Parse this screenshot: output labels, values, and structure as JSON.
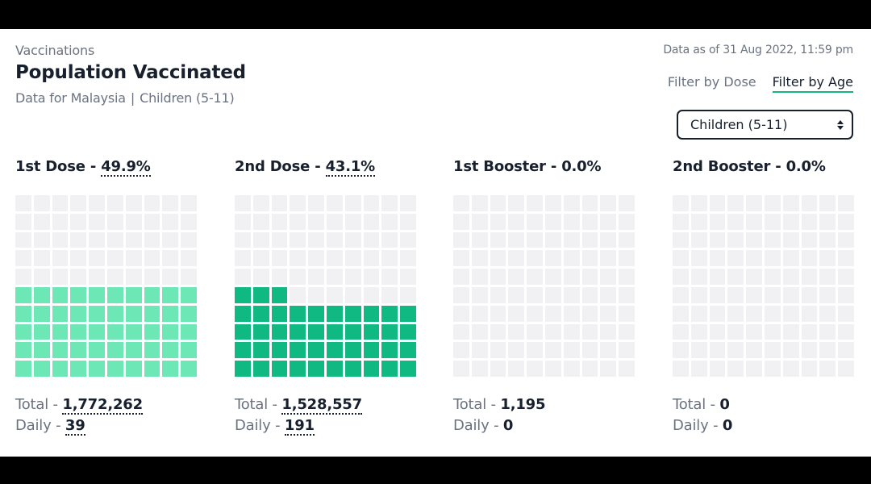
{
  "header": {
    "section": "Vaccinations",
    "title": "Population Vaccinated",
    "subtitle_region": "Data for Malaysia",
    "subtitle_separator": "|",
    "subtitle_group": "Children (5-11)",
    "as_of": "Data as of 31 Aug 2022, 11:59 pm"
  },
  "filters": {
    "dose_label": "Filter by Dose",
    "age_label": "Filter by Age",
    "active": "age"
  },
  "age_select": {
    "value": "Children (5-11)"
  },
  "colors": {
    "dose1": "#6ee7b7",
    "dose2": "#10b981",
    "empty": "#f1f1f3",
    "text": "#18202e",
    "muted": "#6b7280"
  },
  "cards": [
    {
      "name": "1st Dose",
      "sep": "-",
      "pct": "49.9%",
      "pct_value": 49.9,
      "total_label": "Total -",
      "total": "1,772,262",
      "daily_label": "Daily -",
      "daily": "39",
      "color_key": "dose1"
    },
    {
      "name": "2nd Dose",
      "sep": "-",
      "pct": "43.1%",
      "pct_value": 43.1,
      "total_label": "Total -",
      "total": "1,528,557",
      "daily_label": "Daily -",
      "daily": "191",
      "color_key": "dose2"
    },
    {
      "name": "1st Booster",
      "sep": "-",
      "pct": "0.0%",
      "pct_value": 0.0,
      "total_label": "Total -",
      "total": "1,195",
      "daily_label": "Daily -",
      "daily": "0",
      "color_key": "dose2"
    },
    {
      "name": "2nd Booster",
      "sep": "-",
      "pct": "0.0%",
      "pct_value": 0.0,
      "total_label": "Total -",
      "total": "0",
      "daily_label": "Daily -",
      "daily": "0",
      "color_key": "dose2"
    }
  ]
}
